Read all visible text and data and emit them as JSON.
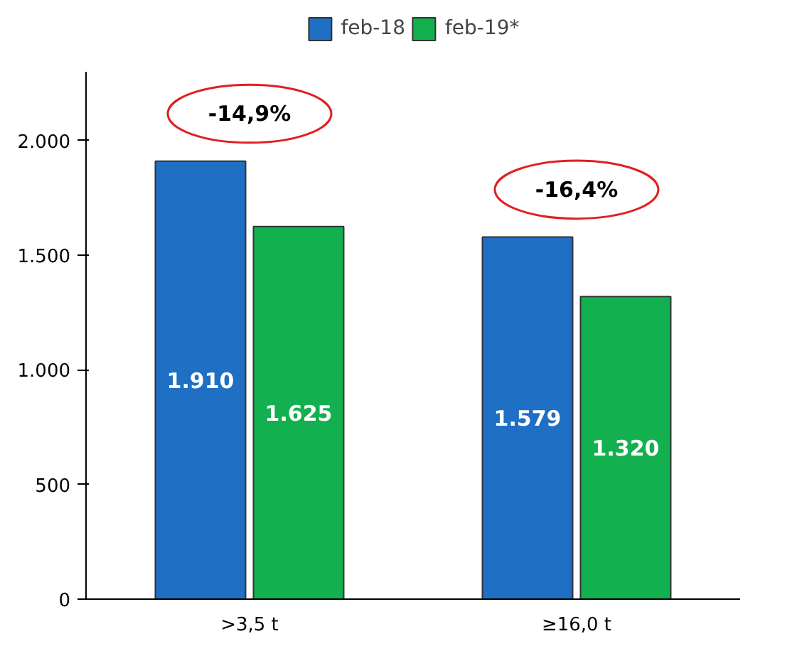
{
  "chart_data": {
    "type": "bar",
    "categories": [
      ">3,5 t",
      "≥16,0 t"
    ],
    "series": [
      {
        "name": "feb-18",
        "color": "#1f6fc4",
        "values": [
          1910,
          1579
        ],
        "value_labels": [
          "1.910",
          "1.579"
        ]
      },
      {
        "name": "feb-19*",
        "color": "#12b04e",
        "values": [
          1625,
          1320
        ],
        "value_labels": [
          "1.625",
          "1.320"
        ]
      }
    ],
    "ylim": [
      0,
      2300
    ],
    "yticks": [
      0,
      500,
      {
        "value": 1000,
        "label": "1.000"
      },
      {
        "value": 1500,
        "label": "1.500"
      },
      {
        "value": 2000,
        "label": "2.000"
      }
    ],
    "annotations": [
      "-14,9%",
      "-16,4%"
    ],
    "grid": false,
    "legend": "top"
  }
}
